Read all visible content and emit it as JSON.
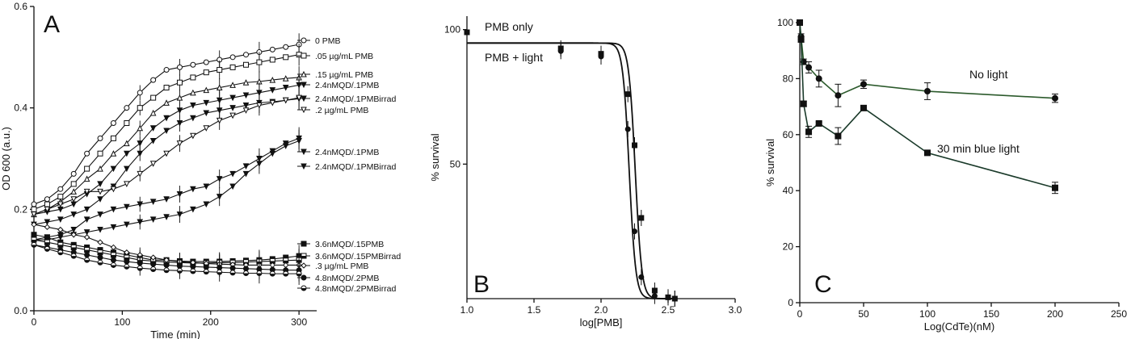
{
  "chart_data": [
    {
      "panel": "A",
      "type": "line",
      "xlabel": "Time (min)",
      "ylabel": "OD 600 (a.u.)",
      "xlim": [
        0,
        320
      ],
      "ylim": [
        0,
        0.6
      ],
      "xticks": [
        0,
        100,
        200,
        300
      ],
      "yticks": [
        0.0,
        0.2,
        0.4,
        0.6
      ],
      "ytick_labels": [
        "0.0",
        "0.2",
        "0.4",
        "0.6"
      ],
      "legend": "right, in three groups",
      "series": [
        {
          "name": "0 PMB",
          "marker": "circle-open",
          "x": [
            0,
            15,
            30,
            45,
            60,
            75,
            90,
            105,
            120,
            135,
            150,
            165,
            180,
            195,
            210,
            225,
            240,
            255,
            270,
            285,
            300
          ],
          "y": [
            0.21,
            0.22,
            0.24,
            0.27,
            0.31,
            0.34,
            0.37,
            0.4,
            0.43,
            0.455,
            0.475,
            0.48,
            0.485,
            0.49,
            0.495,
            0.5,
            0.505,
            0.51,
            0.515,
            0.52,
            0.525
          ]
        },
        {
          "name": ".05 µg/mL PMB",
          "marker": "square-open",
          "x": [
            0,
            15,
            30,
            45,
            60,
            75,
            90,
            105,
            120,
            135,
            150,
            165,
            180,
            195,
            210,
            225,
            240,
            255,
            270,
            285,
            300
          ],
          "y": [
            0.2,
            0.21,
            0.225,
            0.25,
            0.28,
            0.31,
            0.34,
            0.37,
            0.4,
            0.42,
            0.44,
            0.45,
            0.46,
            0.47,
            0.475,
            0.48,
            0.485,
            0.49,
            0.495,
            0.5,
            0.505
          ]
        },
        {
          "name": ".15 µg/mL PMB",
          "marker": "triangle-up-open",
          "x": [
            0,
            15,
            30,
            45,
            60,
            75,
            90,
            105,
            120,
            135,
            150,
            165,
            180,
            195,
            210,
            225,
            240,
            255,
            270,
            285,
            300
          ],
          "y": [
            0.19,
            0.2,
            0.215,
            0.235,
            0.26,
            0.28,
            0.31,
            0.33,
            0.36,
            0.39,
            0.41,
            0.42,
            0.43,
            0.435,
            0.44,
            0.445,
            0.45,
            0.452,
            0.455,
            0.458,
            0.46
          ]
        },
        {
          "name": "2.4nMQD/.1PMB",
          "marker": "triangle-down-filled",
          "x": [
            0,
            15,
            30,
            45,
            60,
            75,
            90,
            105,
            120,
            135,
            150,
            165,
            180,
            195,
            210,
            225,
            240,
            255,
            270,
            285,
            300
          ],
          "y": [
            0.19,
            0.195,
            0.2,
            0.21,
            0.23,
            0.25,
            0.28,
            0.31,
            0.33,
            0.36,
            0.38,
            0.395,
            0.405,
            0.41,
            0.415,
            0.42,
            0.425,
            0.43,
            0.435,
            0.44,
            0.445
          ]
        },
        {
          "name": "2.4nMQD/.1PMBirrad",
          "marker": "triangle-down-filled",
          "x": [
            0,
            15,
            30,
            45,
            60,
            75,
            90,
            105,
            120,
            135,
            150,
            165,
            180,
            195,
            210,
            225,
            240,
            255,
            270,
            285,
            300
          ],
          "y": [
            0.17,
            0.175,
            0.18,
            0.19,
            0.2,
            0.22,
            0.245,
            0.28,
            0.31,
            0.335,
            0.355,
            0.37,
            0.38,
            0.39,
            0.395,
            0.4,
            0.405,
            0.41,
            0.412,
            0.415,
            0.418
          ]
        },
        {
          "name": ".2 µg/mL PMB",
          "marker": "triangle-down-open",
          "x": [
            0,
            15,
            30,
            45,
            60,
            75,
            90,
            105,
            120,
            135,
            150,
            165,
            180,
            195,
            210,
            225,
            240,
            255,
            270,
            285,
            300
          ],
          "y": [
            0.19,
            0.2,
            0.21,
            0.22,
            0.235,
            0.235,
            0.24,
            0.25,
            0.27,
            0.29,
            0.31,
            0.33,
            0.345,
            0.36,
            0.375,
            0.385,
            0.395,
            0.405,
            0.41,
            0.415,
            0.42
          ]
        },
        {
          "name": "2.4nMQD/.1PMB",
          "marker": "triangle-down-filled",
          "x": [
            0,
            15,
            30,
            45,
            60,
            75,
            90,
            105,
            120,
            135,
            150,
            165,
            180,
            195,
            210,
            225,
            240,
            255,
            270,
            285,
            300
          ],
          "y": [
            0.14,
            0.145,
            0.15,
            0.16,
            0.18,
            0.19,
            0.2,
            0.205,
            0.21,
            0.215,
            0.22,
            0.23,
            0.24,
            0.245,
            0.26,
            0.27,
            0.285,
            0.3,
            0.315,
            0.33,
            0.34
          ]
        },
        {
          "name": "2.4nMQD/.1PMBirrad",
          "marker": "triangle-down-filled",
          "x": [
            0,
            15,
            30,
            45,
            60,
            75,
            90,
            105,
            120,
            135,
            150,
            165,
            180,
            195,
            210,
            225,
            240,
            255,
            270,
            285,
            300
          ],
          "y": [
            0.14,
            0.14,
            0.145,
            0.15,
            0.155,
            0.16,
            0.165,
            0.17,
            0.175,
            0.18,
            0.185,
            0.19,
            0.2,
            0.21,
            0.225,
            0.245,
            0.27,
            0.29,
            0.31,
            0.325,
            0.335
          ]
        },
        {
          "name": "3.6nMQD/.15PMB",
          "marker": "square-filled",
          "x": [
            0,
            15,
            30,
            45,
            60,
            75,
            90,
            105,
            120,
            135,
            150,
            165,
            180,
            195,
            210,
            225,
            240,
            255,
            270,
            285,
            300
          ],
          "y": [
            0.15,
            0.145,
            0.135,
            0.13,
            0.125,
            0.12,
            0.115,
            0.11,
            0.105,
            0.1,
            0.1,
            0.098,
            0.097,
            0.097,
            0.097,
            0.098,
            0.099,
            0.1,
            0.102,
            0.105,
            0.108
          ]
        },
        {
          "name": "3.6nMQD/.15PMBirrad",
          "marker": "square-half",
          "x": [
            0,
            15,
            30,
            45,
            60,
            75,
            90,
            105,
            120,
            135,
            150,
            165,
            180,
            195,
            210,
            225,
            240,
            255,
            270,
            285,
            300
          ],
          "y": [
            0.14,
            0.135,
            0.13,
            0.125,
            0.12,
            0.115,
            0.11,
            0.105,
            0.1,
            0.098,
            0.096,
            0.095,
            0.094,
            0.094,
            0.095,
            0.095,
            0.096,
            0.097,
            0.098,
            0.099,
            0.1
          ]
        },
        {
          "name": ".3 µg/mL PMB",
          "marker": "diamond-open",
          "x": [
            0,
            15,
            30,
            45,
            60,
            75,
            90,
            105,
            120,
            135,
            150,
            165,
            180,
            195,
            210,
            225,
            240,
            255,
            270,
            285,
            300
          ],
          "y": [
            0.17,
            0.165,
            0.16,
            0.15,
            0.145,
            0.135,
            0.125,
            0.115,
            0.11,
            0.105,
            0.1,
            0.097,
            0.095,
            0.093,
            0.092,
            0.091,
            0.09,
            0.09,
            0.09,
            0.09,
            0.09
          ]
        },
        {
          "name": "4.8nMQD/.2PMB",
          "marker": "circle-filled",
          "x": [
            0,
            15,
            30,
            45,
            60,
            75,
            90,
            105,
            120,
            135,
            150,
            165,
            180,
            195,
            210,
            225,
            240,
            255,
            270,
            285,
            300
          ],
          "y": [
            0.13,
            0.125,
            0.12,
            0.115,
            0.11,
            0.105,
            0.1,
            0.097,
            0.094,
            0.092,
            0.09,
            0.088,
            0.087,
            0.086,
            0.085,
            0.084,
            0.083,
            0.082,
            0.081,
            0.08,
            0.08
          ]
        },
        {
          "name": "4.8nMQD/.2PMBirrad",
          "marker": "circle-half",
          "x": [
            0,
            15,
            30,
            45,
            60,
            75,
            90,
            105,
            120,
            135,
            150,
            165,
            180,
            195,
            210,
            225,
            240,
            255,
            270,
            285,
            300
          ],
          "y": [
            0.13,
            0.122,
            0.115,
            0.108,
            0.1,
            0.095,
            0.09,
            0.087,
            0.084,
            0.082,
            0.08,
            0.079,
            0.078,
            0.077,
            0.076,
            0.075,
            0.074,
            0.074,
            0.073,
            0.073,
            0.073
          ]
        }
      ]
    },
    {
      "panel": "B",
      "type": "line",
      "xlabel": "log[PMB]",
      "ylabel": "% survival",
      "xlim": [
        1.0,
        3.0
      ],
      "ylim": [
        0,
        105
      ],
      "xticks": [
        1.0,
        1.5,
        2.0,
        2.5,
        3.0
      ],
      "xtick_labels": [
        "1.0",
        "1.5",
        "2.0",
        "2.5",
        "3.0"
      ],
      "yticks": [
        50,
        100
      ],
      "ytick_labels": [
        "50",
        "100"
      ],
      "annotations": [
        "PMB only",
        "PMB + light"
      ],
      "series": [
        {
          "name": "PMB only",
          "marker": "square-filled",
          "x": [
            1.0,
            1.7,
            2.0,
            2.2,
            2.25,
            2.3,
            2.4,
            2.5,
            2.55
          ],
          "y": [
            99,
            93,
            91,
            76,
            57,
            30,
            3,
            0.5,
            0
          ],
          "fit": {
            "top": 95,
            "bottom": 0,
            "logEC50": 2.255,
            "slope": -18
          }
        },
        {
          "name": "PMB + light",
          "marker": "circle-filled",
          "x": [
            1.0,
            1.7,
            2.0,
            2.2,
            2.25,
            2.3,
            2.4,
            2.5,
            2.55
          ],
          "y": [
            99,
            92,
            90,
            63,
            25,
            8,
            1,
            0.5,
            0
          ],
          "fit": {
            "top": 95,
            "bottom": 0,
            "logEC50": 2.21,
            "slope": -18
          }
        }
      ]
    },
    {
      "panel": "C",
      "type": "line",
      "xlabel": "Log(CdTe)(nM)",
      "ylabel": "% survival",
      "xlim": [
        0,
        250
      ],
      "ylim": [
        0,
        100
      ],
      "xticks": [
        0,
        50,
        100,
        150,
        200,
        250
      ],
      "yticks": [
        0,
        20,
        40,
        60,
        80,
        100
      ],
      "series": [
        {
          "name": "No light",
          "marker": "circle-filled",
          "color": "#2c5a2c",
          "x": [
            0,
            1,
            3,
            7,
            15,
            30,
            50,
            100,
            200
          ],
          "y": [
            100,
            95,
            86,
            84,
            80,
            74,
            78,
            75.5,
            73
          ],
          "err": [
            0,
            1,
            1,
            2,
            3,
            4,
            1.5,
            3,
            1.5
          ]
        },
        {
          "name": "30 min blue light",
          "marker": "square-filled",
          "color": "#1a3a2a",
          "x": [
            0,
            1,
            3,
            7,
            15,
            30,
            50,
            100,
            200
          ],
          "y": [
            100,
            94,
            71,
            61,
            64,
            59.5,
            69.5,
            53.5,
            41
          ],
          "err": [
            0,
            1,
            1,
            2,
            0.5,
            3,
            0.5,
            0.5,
            2
          ]
        }
      ]
    }
  ]
}
